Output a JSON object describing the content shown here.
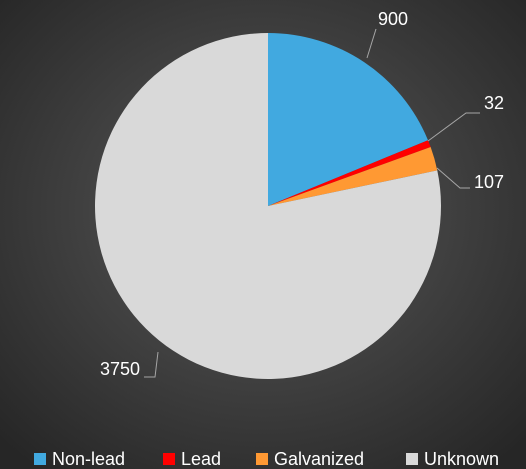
{
  "chart_data": {
    "type": "pie",
    "categories": [
      "Non-lead",
      "Lead",
      "Galvanized",
      "Unknown"
    ],
    "values": [
      900,
      32,
      107,
      3750
    ],
    "colors": [
      "#41a9e0",
      "#ff0000",
      "#ff9933",
      "#d9d9d9"
    ],
    "legend": "bottom"
  }
}
